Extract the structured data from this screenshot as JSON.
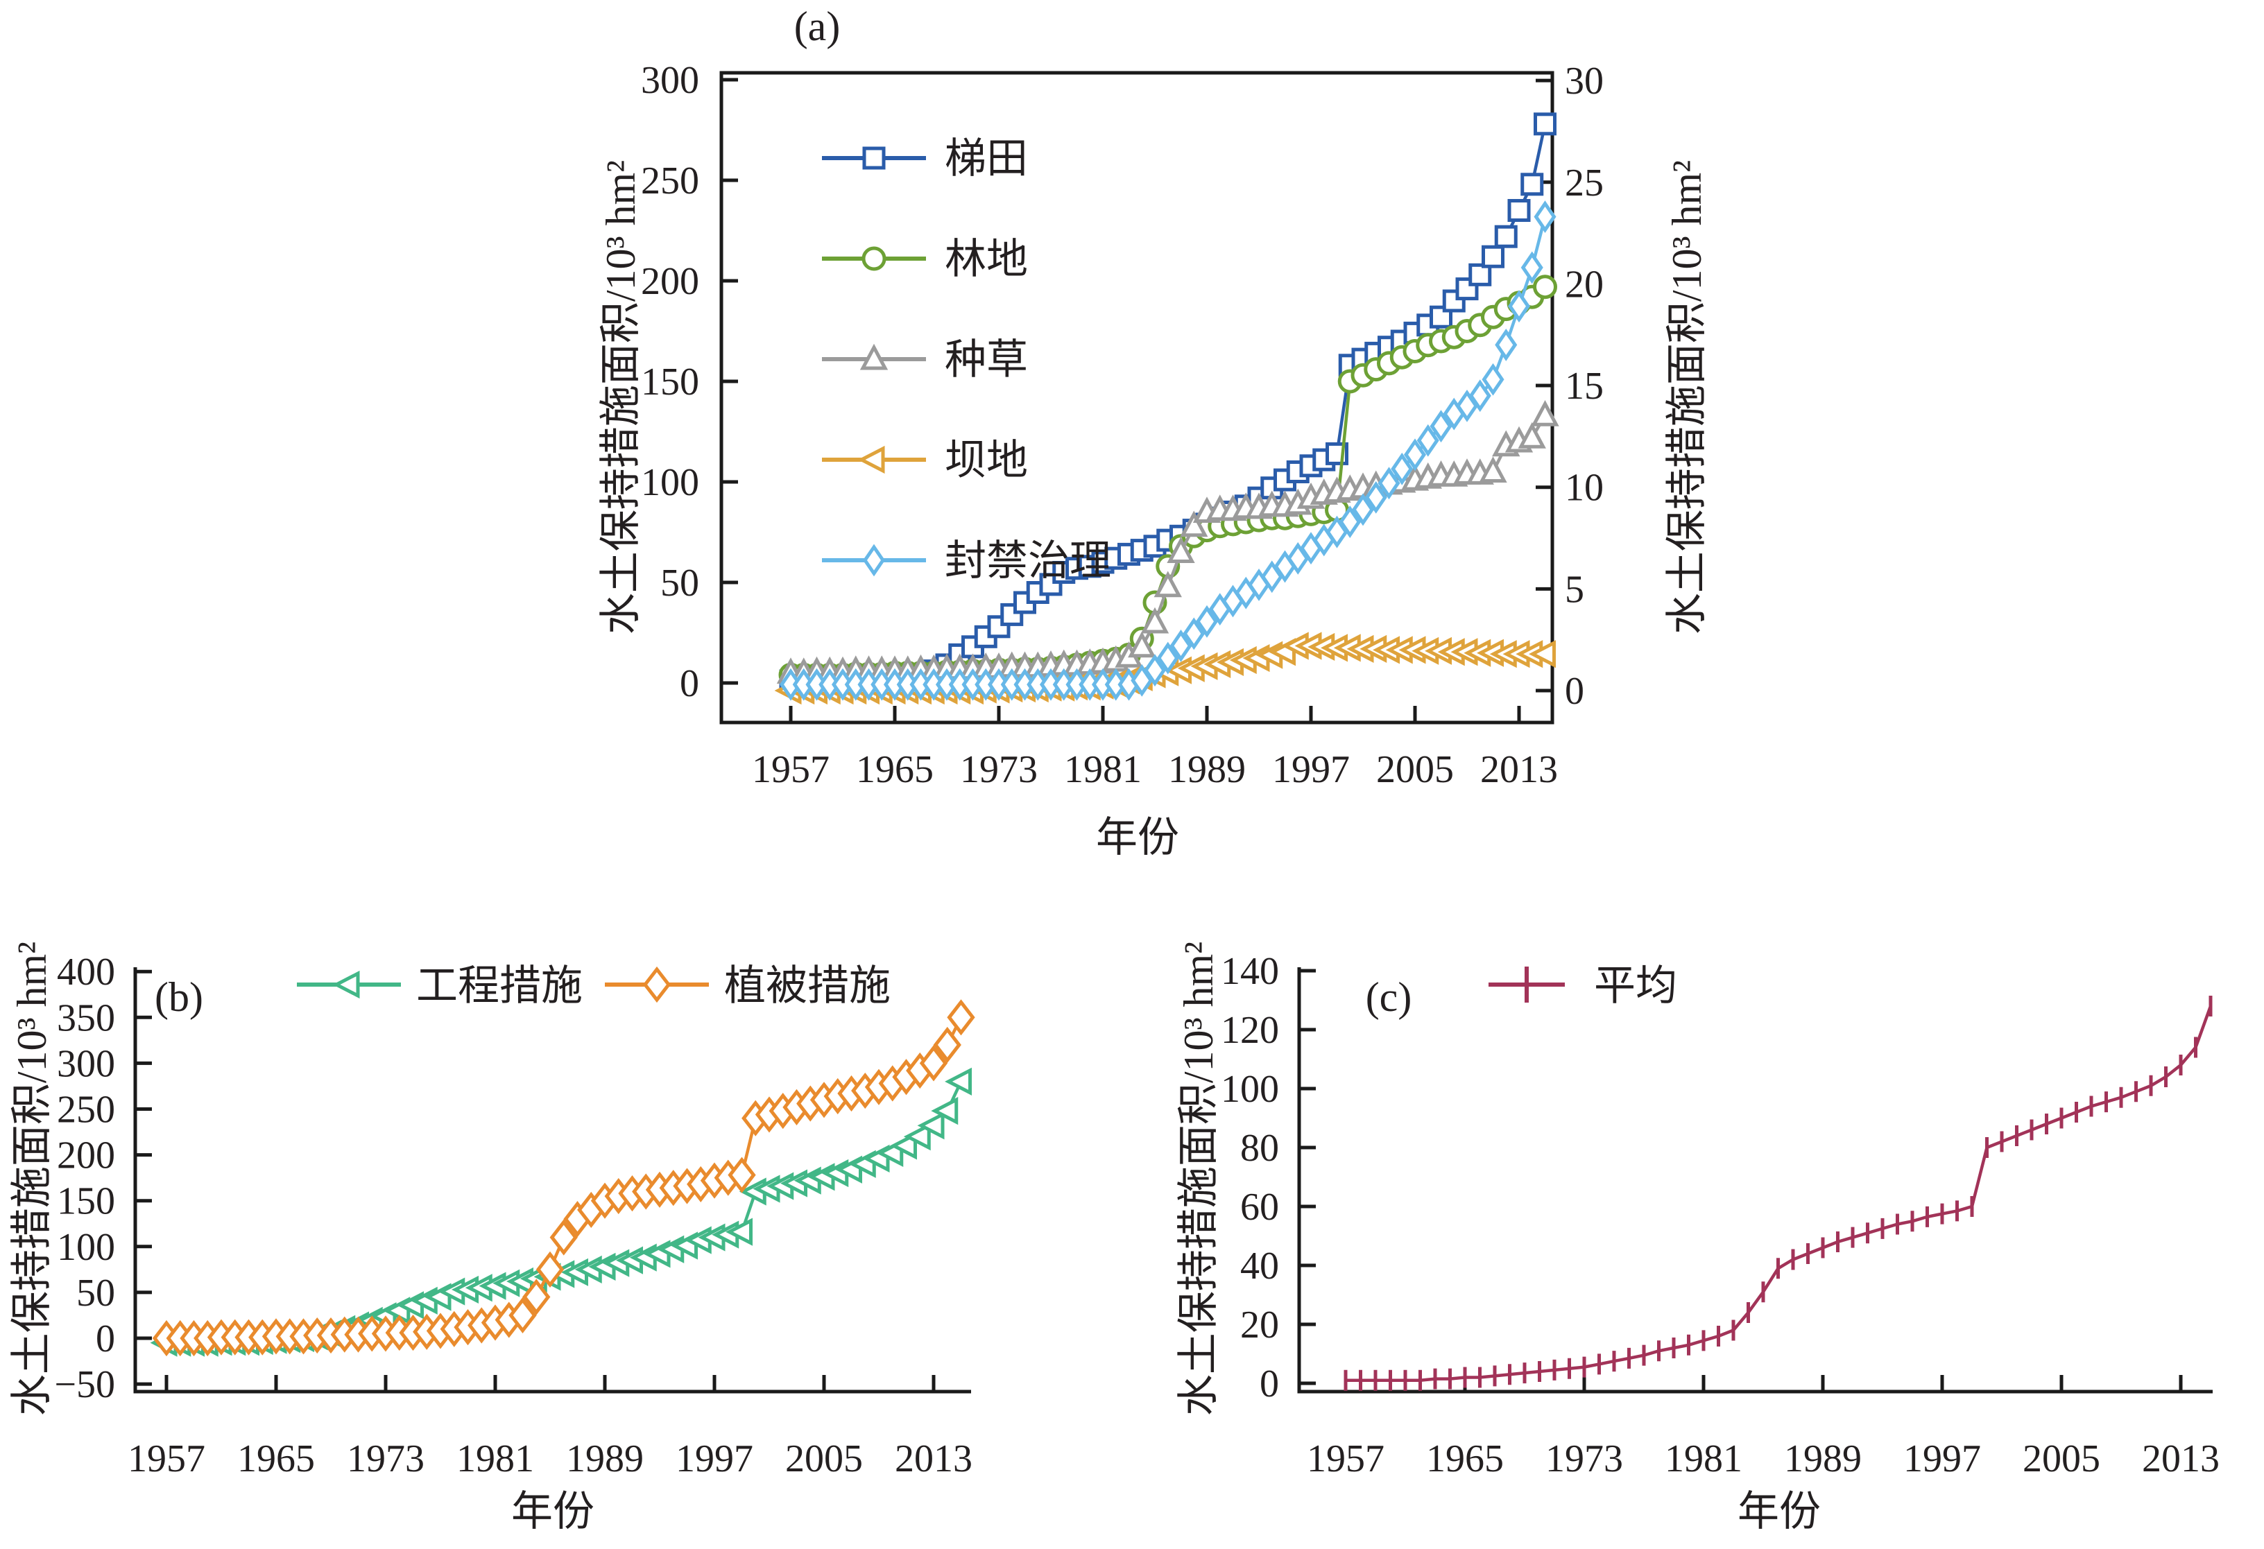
{
  "figure": {
    "xlabel": "年份",
    "ylabel": "水土保持措施面积/10³ hm²",
    "x_tick_years": [
      1957,
      1965,
      1973,
      1981,
      1989,
      1997,
      2005,
      2013
    ],
    "years": [
      1957,
      1958,
      1959,
      1960,
      1961,
      1962,
      1963,
      1964,
      1965,
      1966,
      1967,
      1968,
      1969,
      1970,
      1971,
      1972,
      1973,
      1974,
      1975,
      1976,
      1977,
      1978,
      1979,
      1980,
      1981,
      1982,
      1983,
      1984,
      1985,
      1986,
      1987,
      1988,
      1989,
      1990,
      1991,
      1992,
      1993,
      1994,
      1995,
      1996,
      1997,
      1998,
      1999,
      2000,
      2001,
      2002,
      2003,
      2004,
      2005,
      2006,
      2007,
      2008,
      2009,
      2010,
      2011,
      2012,
      2013,
      2014,
      2015
    ]
  },
  "chart_data": [
    {
      "id": "a",
      "type": "line",
      "panel_label": "(a)",
      "xlabel": "年份",
      "ylabel_left": "水土保持措施面积/10³ hm²",
      "ylabel_right": "水土保持措施面积/10³ hm²",
      "x_ticks": [
        1957,
        1965,
        1973,
        1981,
        1989,
        1997,
        2005,
        2013
      ],
      "xlim": [
        1954.5,
        2015.6
      ],
      "ylim_left": [
        -20,
        310
      ],
      "ylim_right": [
        -1.6,
        30.4
      ],
      "yticks_left": [
        0,
        50,
        100,
        150,
        200,
        250,
        300
      ],
      "yticks_right": [
        0,
        5,
        10,
        15,
        20,
        25,
        30
      ],
      "grid": false,
      "legend_position": "inside-top-left",
      "series": [
        {
          "key": "terrace",
          "label": "梯田",
          "color": "#2a5caa",
          "marker": "square",
          "axis": "left",
          "values": [
            1,
            1,
            1,
            1,
            1,
            1,
            1,
            1.5,
            2,
            3,
            4,
            6,
            9,
            14,
            18,
            23,
            28,
            34,
            40,
            45,
            49,
            55,
            57,
            58,
            60,
            62,
            64,
            66,
            68,
            71,
            73,
            76,
            79,
            82,
            85,
            88,
            92,
            97,
            101,
            105,
            108,
            111,
            114,
            158,
            161,
            164,
            167,
            170,
            174,
            178,
            182,
            190,
            196,
            203,
            212,
            222,
            235,
            248,
            278
          ]
        },
        {
          "key": "forest",
          "label": "林地",
          "color": "#6da135",
          "marker": "circle",
          "axis": "left",
          "values": [
            4,
            4,
            4,
            4,
            4,
            4.5,
            4.5,
            4.5,
            5,
            5,
            5,
            5,
            5.5,
            5.5,
            6,
            6,
            6.5,
            6.5,
            7,
            7,
            7.5,
            8,
            9,
            10,
            11,
            12,
            14,
            22,
            40,
            58,
            68,
            73,
            76,
            78,
            79,
            80,
            81,
            82,
            82,
            83,
            84,
            85,
            86,
            150,
            153,
            156,
            159,
            162,
            165,
            168,
            170,
            172,
            175,
            178,
            182,
            186,
            189,
            192,
            197
          ]
        },
        {
          "key": "grass",
          "label": "种草",
          "color": "#9b9b9b",
          "marker": "triangle-up",
          "axis": "left",
          "values": [
            5,
            5,
            5.5,
            5.5,
            5.5,
            6,
            6,
            6,
            6,
            6,
            6.5,
            6.5,
            7,
            7,
            7,
            7.5,
            7.5,
            8,
            8,
            8,
            8.5,
            9,
            9,
            9.5,
            10,
            11,
            13,
            18,
            30,
            48,
            65,
            78,
            85,
            86,
            86,
            87,
            87,
            88,
            88,
            89,
            92,
            94,
            95,
            96,
            97,
            98,
            99,
            100,
            101,
            102,
            103,
            103,
            104,
            104,
            105,
            118,
            120,
            122,
            133
          ]
        },
        {
          "key": "dam",
          "label": "坝地",
          "color": "#dfa33b",
          "marker": "triangle-left",
          "axis": "right",
          "values": [
            0,
            0,
            0,
            0,
            0,
            0,
            0,
            0,
            0,
            0,
            0,
            0,
            0,
            0,
            0,
            0.05,
            0.05,
            0.1,
            0.1,
            0.1,
            0.15,
            0.15,
            0.2,
            0.2,
            0.25,
            0.35,
            0.5,
            0.65,
            0.8,
            0.9,
            1,
            1.1,
            1.2,
            1.3,
            1.4,
            1.5,
            1.6,
            1.75,
            1.9,
            2.2,
            2.2,
            2.15,
            2.1,
            2.1,
            2.05,
            2.05,
            2,
            2,
            2,
            1.95,
            1.95,
            1.9,
            1.9,
            1.85,
            1.85,
            1.8,
            1.8,
            1.8,
            1.8
          ]
        },
        {
          "key": "closure",
          "label": "封禁治理",
          "color": "#67b8e8",
          "marker": "diamond",
          "axis": "right",
          "values": [
            0.3,
            0.3,
            0.3,
            0.3,
            0.3,
            0.3,
            0.3,
            0.3,
            0.3,
            0.3,
            0.3,
            0.3,
            0.3,
            0.3,
            0.3,
            0.3,
            0.3,
            0.3,
            0.3,
            0.3,
            0.3,
            0.3,
            0.3,
            0.3,
            0.3,
            0.3,
            0.3,
            0.5,
            1,
            1.6,
            2.2,
            2.8,
            3.4,
            4,
            4.4,
            4.8,
            5.2,
            5.6,
            6.1,
            6.5,
            7,
            7.4,
            7.8,
            8.3,
            8.9,
            9.5,
            10.2,
            10.9,
            11.6,
            12.3,
            13,
            13.6,
            14,
            14.5,
            15.3,
            17,
            18.9,
            20.8,
            23.3
          ]
        }
      ]
    },
    {
      "id": "b",
      "type": "line",
      "panel_label": "(b)",
      "xlabel": "年份",
      "ylabel_left": "水土保持措施面积/10³ hm²",
      "x_ticks": [
        1957,
        1965,
        1973,
        1981,
        1989,
        1997,
        2005,
        2013
      ],
      "xlim": [
        1954.7,
        2015.7
      ],
      "ylim_left": [
        -58,
        405
      ],
      "yticks_left": [
        -50,
        0,
        50,
        100,
        150,
        200,
        250,
        300,
        350,
        400
      ],
      "grid": false,
      "legend_position": "top-inside-row",
      "series": [
        {
          "key": "engineering",
          "label": "工程措施",
          "color": "#42b787",
          "marker": "triangle-left",
          "axis": "left",
          "values": [
            -5,
            -5,
            -5,
            -5,
            -4,
            -4,
            -4,
            -3,
            -2,
            -1,
            0,
            2,
            5,
            10,
            14,
            19,
            24,
            30,
            36,
            41,
            45,
            51,
            53,
            55,
            57,
            60,
            62,
            65,
            67,
            70,
            72,
            75,
            78,
            82,
            85,
            88,
            92,
            97,
            101,
            107,
            110,
            113,
            116,
            160,
            163,
            166,
            169,
            172,
            176,
            180,
            184,
            190,
            196,
            202,
            210,
            220,
            232,
            248,
            280
          ]
        },
        {
          "key": "vegetation",
          "label": "植被措施",
          "color": "#e98b2d",
          "marker": "diamond-b",
          "axis": "left",
          "values": [
            0,
            0,
            0,
            0,
            1,
            1,
            1,
            1,
            2,
            2,
            2,
            3,
            3,
            4,
            4,
            5,
            5,
            6,
            6,
            7,
            8,
            10,
            12,
            14,
            17,
            20,
            25,
            45,
            75,
            110,
            130,
            140,
            150,
            155,
            158,
            160,
            162,
            164,
            166,
            168,
            172,
            175,
            178,
            240,
            244,
            248,
            252,
            256,
            260,
            264,
            267,
            270,
            274,
            278,
            285,
            292,
            300,
            320,
            350
          ]
        }
      ]
    },
    {
      "id": "c",
      "type": "line",
      "panel_label": "(c)",
      "xlabel": "年份",
      "ylabel_left": "水土保持措施面积/10³ hm²",
      "x_ticks": [
        1957,
        1965,
        1973,
        1981,
        1989,
        1997,
        2005,
        2013
      ],
      "xlim": [
        1954.9,
        2015.7
      ],
      "ylim_left": [
        -3,
        141
      ],
      "yticks_left": [
        0,
        20,
        40,
        60,
        80,
        100,
        120,
        140
      ],
      "grid": false,
      "legend_position": "top-inside-row",
      "error_bar_halfwidth": 3,
      "series": [
        {
          "key": "average",
          "label": "平均",
          "color": "#a23358",
          "marker": "vtick",
          "axis": "left",
          "values": [
            1,
            1,
            1,
            1,
            1,
            1,
            1.5,
            1.5,
            2,
            2,
            2.5,
            3,
            3.5,
            4,
            4.5,
            5,
            5.5,
            6.5,
            7.5,
            8.5,
            9.5,
            11,
            12,
            13,
            14.5,
            16,
            18,
            24,
            31,
            39,
            42,
            44,
            46,
            48,
            49.5,
            51,
            52.5,
            54,
            55,
            56.5,
            57.5,
            58.5,
            60,
            80,
            82,
            84,
            86,
            88,
            90,
            92,
            94,
            95.5,
            97,
            99,
            101,
            104,
            108,
            114,
            128
          ]
        }
      ]
    }
  ]
}
